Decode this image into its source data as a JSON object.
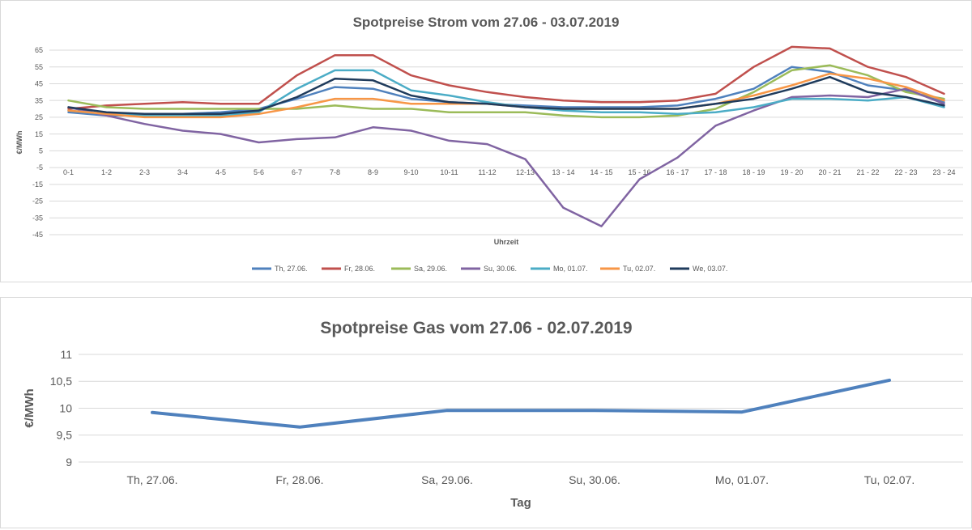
{
  "chart_data": [
    {
      "type": "line",
      "title": "Spotpreise Strom vom 27.06 - 03.07.2019",
      "xlabel": "Uhrzeit",
      "ylabel": "€/MWh",
      "ylim": [
        -45,
        65
      ],
      "yticks": [
        "65",
        "55",
        "45",
        "35",
        "25",
        "15",
        "5",
        "-5",
        "-15",
        "-25",
        "-35",
        "-45"
      ],
      "grid": true,
      "legend": "bottom",
      "categories": [
        "0-1",
        "1-2",
        "2-3",
        "3-4",
        "4-5",
        "5-6",
        "6-7",
        "7-8",
        "8-9",
        "9-10",
        "10-11",
        "11-12",
        "12-13",
        "13 - 14",
        "14 - 15",
        "15 - 16",
        "16 - 17",
        "17 - 18",
        "18 - 19",
        "19 - 20",
        "20 - 21",
        "21 - 22",
        "22 - 23",
        "23 - 24"
      ],
      "series": [
        {
          "name": "Th, 27.06.",
          "color": "#4f81bd",
          "values": [
            28,
            26,
            26,
            27,
            28,
            30,
            36,
            43,
            42,
            36,
            34,
            33,
            32,
            31,
            31,
            31,
            32,
            36,
            42,
            55,
            52,
            44,
            41,
            34
          ]
        },
        {
          "name": "Fr, 28.06.",
          "color": "#c0504d",
          "values": [
            30,
            32,
            33,
            34,
            33,
            33,
            50,
            62,
            62,
            50,
            44,
            40,
            37,
            35,
            34,
            34,
            35,
            39,
            55,
            67,
            66,
            55,
            49,
            39
          ]
        },
        {
          "name": "Sa, 29.06.",
          "color": "#9bbb59",
          "values": [
            35,
            31,
            30,
            30,
            30,
            30,
            30,
            32,
            30,
            30,
            28,
            28,
            28,
            26,
            25,
            25,
            26,
            30,
            40,
            53,
            56,
            50,
            40,
            36
          ]
        },
        {
          "name": "Su, 30.06.",
          "color": "#8064a2",
          "values": [
            31,
            26,
            21,
            17,
            15,
            10,
            12,
            13,
            19,
            17,
            11,
            9,
            0,
            -29,
            -40,
            -12,
            1,
            20,
            29,
            37,
            38,
            37,
            42,
            33
          ]
        },
        {
          "name": "Mo, 01.07.",
          "color": "#4bacc6",
          "values": [
            29,
            27,
            26,
            26,
            26,
            28,
            42,
            53,
            53,
            41,
            38,
            34,
            31,
            29,
            28,
            28,
            27,
            28,
            31,
            36,
            36,
            35,
            37,
            31
          ]
        },
        {
          "name": "Tu, 02.07.",
          "color": "#f79646",
          "values": [
            29,
            27,
            25,
            25,
            25,
            27,
            31,
            36,
            36,
            33,
            33,
            33,
            31,
            30,
            30,
            30,
            30,
            33,
            38,
            44,
            51,
            48,
            43,
            35
          ]
        },
        {
          "name": "We, 03.07.",
          "color": "#1f3b5c",
          "values": [
            31,
            28,
            27,
            27,
            27,
            29,
            37,
            48,
            47,
            38,
            34,
            33,
            31,
            30,
            30,
            30,
            30,
            33,
            36,
            42,
            49,
            40,
            37,
            32
          ]
        }
      ]
    },
    {
      "type": "line",
      "title": "Spotpreise Gas vom 27.06 - 02.07.2019",
      "xlabel": "Tag",
      "ylabel": "€/MWh",
      "ylim": [
        9,
        11
      ],
      "yticks": [
        "11",
        "10,5",
        "10",
        "9,5",
        "9"
      ],
      "grid": true,
      "categories": [
        "Th, 27.06.",
        "Fr, 28.06.",
        "Sa, 29.06.",
        "Su, 30.06.",
        "Mo, 01.07.",
        "Tu, 02.07."
      ],
      "series": [
        {
          "color": "#4f81bd",
          "values": [
            9.92,
            9.65,
            9.96,
            9.96,
            9.93,
            10.52
          ]
        }
      ]
    }
  ],
  "colors": {
    "grid": "#d9d9d9",
    "text": "#595959"
  }
}
